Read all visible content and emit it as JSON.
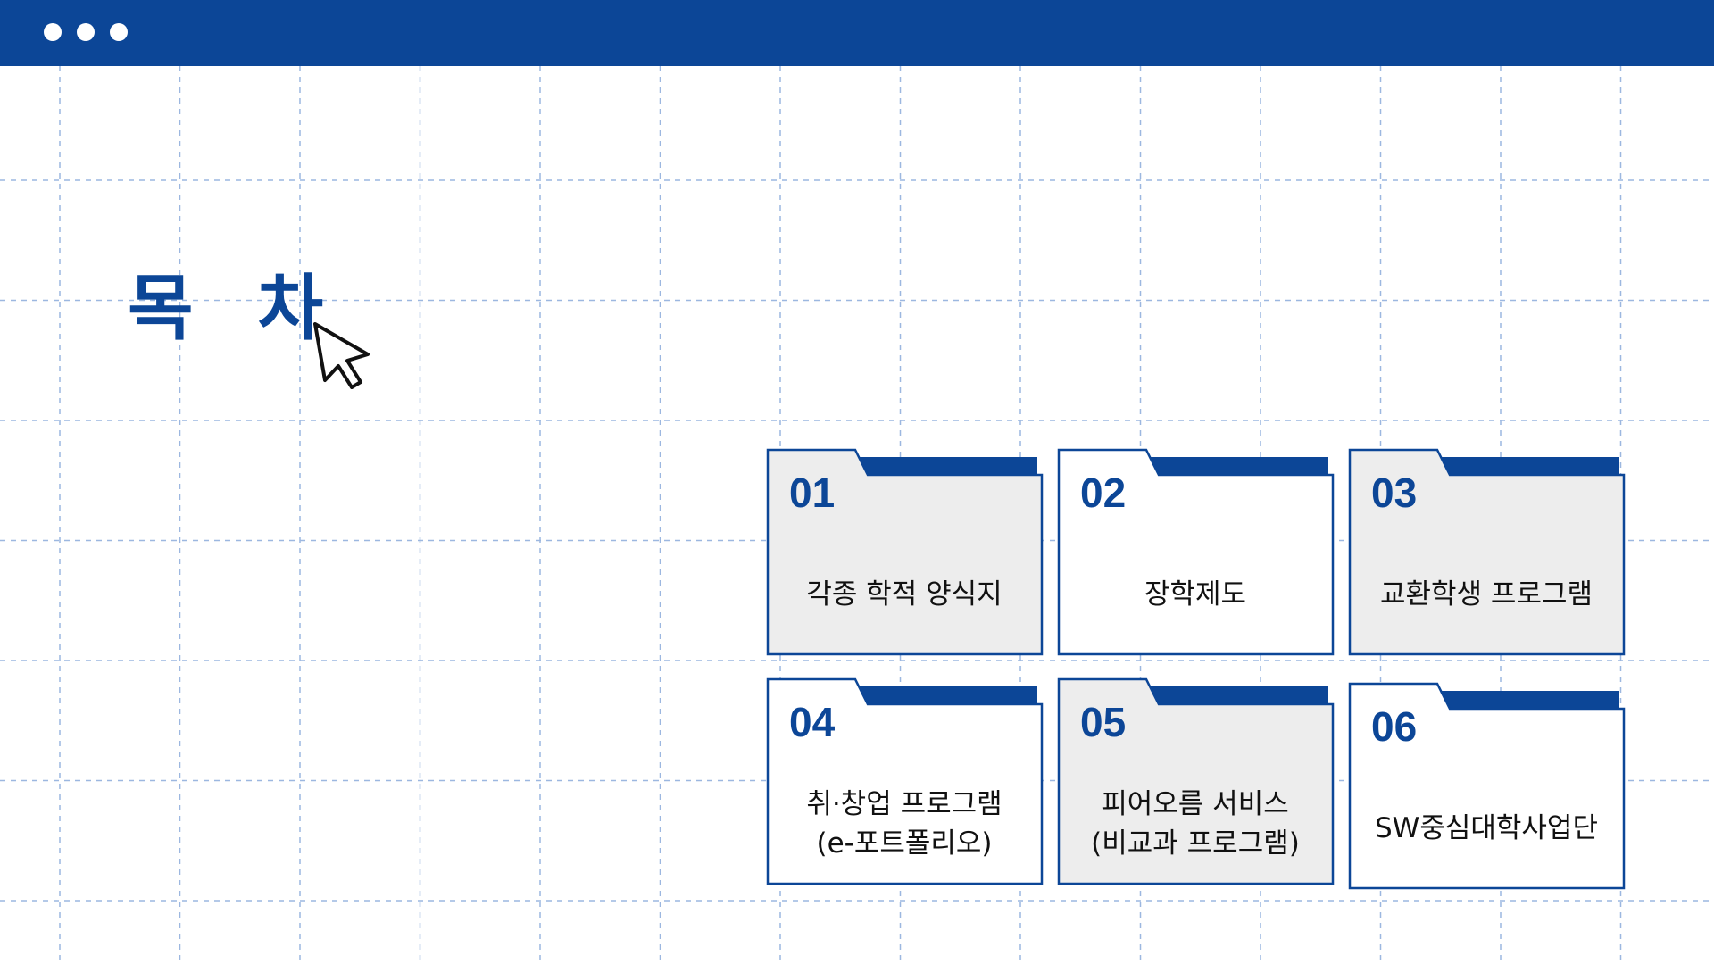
{
  "colors": {
    "brand": "#0c4697",
    "grid_line": "#9cb7e0",
    "folder_fill_gray": "#ededed",
    "folder_fill_white": "#ffffff",
    "text": "#111111"
  },
  "window_controls": [
    "dot",
    "dot",
    "dot"
  ],
  "title": "목 차",
  "cursor_icon": "mouse-pointer-arrow",
  "menu": [
    {
      "number": "01",
      "label_lines": [
        "각종 학적 양식지"
      ],
      "fill": "gray"
    },
    {
      "number": "02",
      "label_lines": [
        "장학제도"
      ],
      "fill": "white"
    },
    {
      "number": "03",
      "label_lines": [
        "교환학생 프로그램"
      ],
      "fill": "gray"
    },
    {
      "number": "04",
      "label_lines": [
        "취·창업 프로그램",
        "(e-포트폴리오)"
      ],
      "fill": "white"
    },
    {
      "number": "05",
      "label_lines": [
        "피어오름 서비스",
        "(비교과 프로그램)"
      ],
      "fill": "gray"
    },
    {
      "number": "06",
      "label_lines": [
        "SW중심대학사업단"
      ],
      "fill": "white"
    }
  ]
}
